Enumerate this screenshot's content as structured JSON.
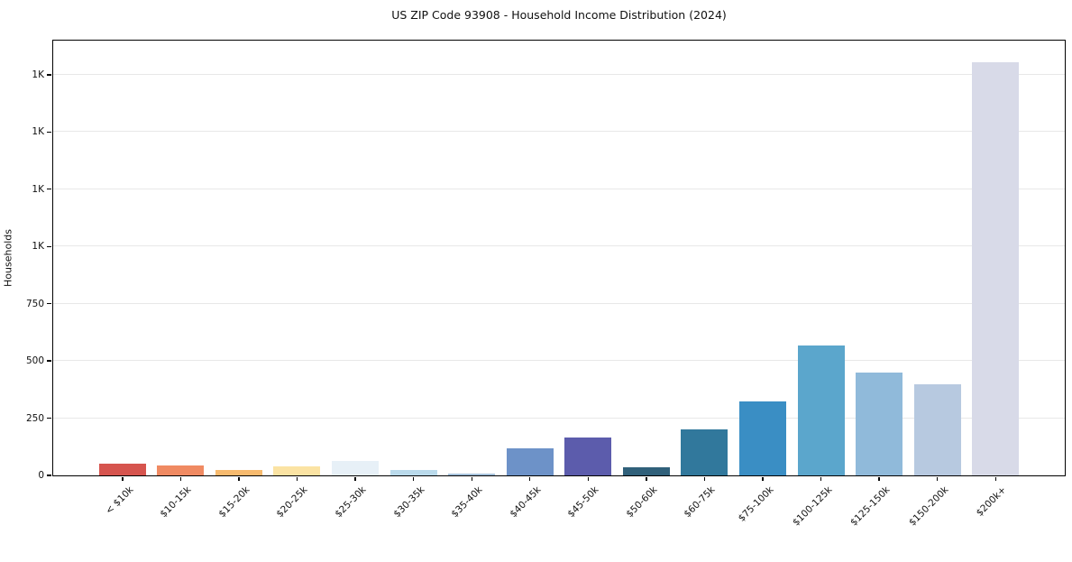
{
  "chart_data": {
    "type": "bar",
    "title": "US ZIP Code 93908 - Household Income Distribution (2024)",
    "xlabel": "",
    "ylabel": "Households",
    "ylim": [
      0,
      1900
    ],
    "grid": true,
    "legend": "none",
    "categories": [
      "< $10k",
      "$10-15k",
      "$15-20k",
      "$20-25k",
      "$25-30k",
      "$30-35k",
      "$35-40k",
      "$40-45k",
      "$45-50k",
      "$50-60k",
      "$60-75k",
      "$75-100k",
      "$100-125k",
      "$125-150k",
      "$150-200k",
      "$200k+"
    ],
    "values": [
      50,
      44,
      23,
      38,
      64,
      23,
      8,
      119,
      167,
      34,
      201,
      325,
      569,
      450,
      397,
      1807
    ],
    "bar_colors": [
      "#d6544e",
      "#f08a62",
      "#f7ba6e",
      "#fbe3a3",
      "#e7f0f7",
      "#badaeb",
      "#a6c2dc",
      "#6d92c8",
      "#5c5cac",
      "#30607a",
      "#31789c",
      "#3a8ec4",
      "#5ba6cc",
      "#90bada",
      "#b7c9e0",
      "#d8dae8"
    ],
    "yticks": [
      {
        "value": 0,
        "label": "0"
      },
      {
        "value": 250,
        "label": "250"
      },
      {
        "value": 500,
        "label": "500"
      },
      {
        "value": 750,
        "label": "750"
      },
      {
        "value": 1000,
        "label": "1K"
      },
      {
        "value": 1250,
        "label": "1K"
      },
      {
        "value": 1500,
        "label": "1K"
      },
      {
        "value": 1750,
        "label": "1K"
      }
    ],
    "axis_color": "#000000",
    "gridline_color": "#e8e8e8",
    "background_color": "#ffffff"
  }
}
